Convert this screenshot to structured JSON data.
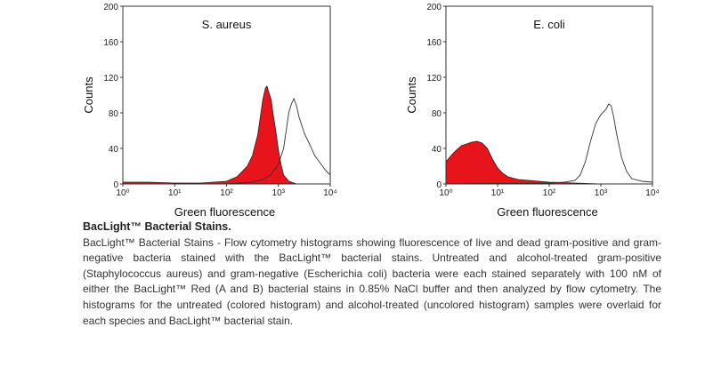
{
  "chart_data": [
    {
      "type": "area",
      "title": "S. aureus",
      "xlabel": "Green fluorescence",
      "ylabel": "Counts",
      "xscale": "log",
      "xlim": [
        1,
        10000
      ],
      "ylim": [
        0,
        200
      ],
      "x_tick_labels": [
        "10⁰",
        "10¹",
        "10²",
        "10³",
        "10⁴"
      ],
      "y_tick_labels": [
        "0",
        "40",
        "80",
        "120",
        "160",
        "200"
      ],
      "y_ticks": [
        0,
        40,
        80,
        120,
        160,
        200
      ],
      "series": [
        {
          "name": "untreated (colored histogram)",
          "fill": "#e8141c",
          "log10_x": [
            0,
            0.5,
            1.0,
            1.5,
            2.0,
            2.2,
            2.4,
            2.5,
            2.6,
            2.65,
            2.7,
            2.75,
            2.78,
            2.82,
            2.86,
            2.9,
            2.95,
            3.0,
            3.05,
            3.1,
            3.2,
            3.35,
            3.5,
            4.0
          ],
          "counts": [
            2,
            2,
            1,
            1,
            3,
            8,
            20,
            32,
            55,
            75,
            95,
            108,
            110,
            102,
            95,
            78,
            60,
            38,
            22,
            10,
            3,
            0,
            0,
            0
          ]
        },
        {
          "name": "alcohol-treated (uncolored histogram)",
          "fill": "none",
          "log10_x": [
            0,
            2.0,
            2.5,
            2.7,
            2.85,
            3.0,
            3.1,
            3.15,
            3.2,
            3.25,
            3.3,
            3.35,
            3.4,
            3.5,
            3.6,
            3.7,
            3.8,
            3.9,
            4.0
          ],
          "counts": [
            0,
            0,
            2,
            5,
            10,
            22,
            40,
            60,
            80,
            90,
            96,
            88,
            75,
            57,
            45,
            32,
            24,
            16,
            10
          ]
        }
      ]
    },
    {
      "type": "area",
      "title": "E. coli",
      "xlabel": "Green fluorescence",
      "ylabel": "Counts",
      "xscale": "log",
      "xlim": [
        1,
        10000
      ],
      "ylim": [
        0,
        200
      ],
      "x_tick_labels": [
        "10⁰",
        "10¹",
        "10²",
        "10³",
        "10⁴"
      ],
      "y_tick_labels": [
        "0",
        "40",
        "80",
        "120",
        "160",
        "200"
      ],
      "y_ticks": [
        0,
        40,
        80,
        120,
        160,
        200
      ],
      "series": [
        {
          "name": "untreated (colored histogram)",
          "fill": "#e8141c",
          "log10_x": [
            0,
            0.1,
            0.2,
            0.3,
            0.4,
            0.5,
            0.6,
            0.7,
            0.8,
            0.9,
            1.0,
            1.1,
            1.2,
            1.4,
            1.6,
            2.0,
            2.5,
            3.0,
            4.0
          ],
          "counts": [
            25,
            32,
            38,
            43,
            45,
            47,
            48,
            46,
            40,
            28,
            18,
            12,
            8,
            5,
            4,
            2,
            1,
            0,
            0
          ]
        },
        {
          "name": "alcohol-treated (uncolored histogram)",
          "fill": "none",
          "log10_x": [
            0,
            2.0,
            2.3,
            2.5,
            2.6,
            2.7,
            2.8,
            2.9,
            3.0,
            3.1,
            3.15,
            3.2,
            3.25,
            3.3,
            3.4,
            3.5,
            3.6,
            3.8,
            4.0
          ],
          "counts": [
            0,
            1,
            2,
            4,
            10,
            25,
            48,
            68,
            78,
            84,
            90,
            88,
            75,
            58,
            30,
            14,
            6,
            3,
            2
          ]
        }
      ]
    }
  ],
  "caption": {
    "title": "BacLight™ Bacterial Stains.",
    "body": "BacLight™ Bacterial Stains - Flow cytometry histograms showing fluorescence of live and dead gram-positive and gram-negative bacteria stained with the BacLight™ bacterial stains. Untreated and alcohol-treated gram-positive (Staphylococcus aureus) and gram-negative (Escherichia coli) bacteria were each stained separately with 100 nM of either the BacLight™ Red (A and B) bacterial stains in 0.85% NaCl buffer and then analyzed by flow cytometry. The histograms for the untreated (colored histogram) and alcohol-treated (uncolored histogram) samples were overlaid for each species and BacLight™ bacterial stain."
  }
}
